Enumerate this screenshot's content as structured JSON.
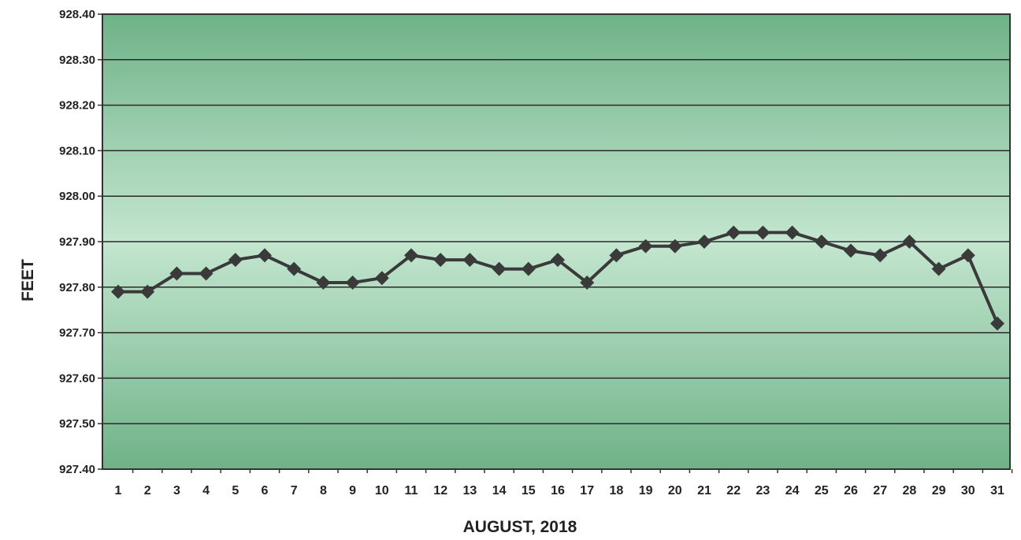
{
  "chart_data": {
    "type": "line",
    "title": "",
    "xlabel": "AUGUST, 2018",
    "ylabel": "FEET",
    "ylim": [
      927.4,
      928.4
    ],
    "y_ticks": [
      "927.40",
      "927.50",
      "927.60",
      "927.70",
      "927.80",
      "927.90",
      "928.00",
      "928.10",
      "928.20",
      "928.30",
      "928.40"
    ],
    "grid": true,
    "legend": "none",
    "categories": [
      "1",
      "2",
      "3",
      "4",
      "5",
      "6",
      "7",
      "8",
      "9",
      "10",
      "11",
      "12",
      "13",
      "14",
      "15",
      "16",
      "17",
      "18",
      "19",
      "20",
      "21",
      "22",
      "23",
      "24",
      "25",
      "26",
      "27",
      "28",
      "29",
      "30",
      "31"
    ],
    "series": [
      {
        "values": [
          927.79,
          927.79,
          927.83,
          927.83,
          927.86,
          927.87,
          927.84,
          927.81,
          927.81,
          927.82,
          927.87,
          927.86,
          927.86,
          927.84,
          927.84,
          927.86,
          927.81,
          927.87,
          927.89,
          927.89,
          927.9,
          927.92,
          927.92,
          927.92,
          927.9,
          927.88,
          927.87,
          927.9,
          927.84,
          927.87,
          927.72
        ]
      }
    ],
    "colors": {
      "plot_bg_edge": "#6fb288",
      "plot_bg_center": "#c3e6cf",
      "line": "#3a3a3a",
      "gridline": "#2a2a2a"
    }
  }
}
